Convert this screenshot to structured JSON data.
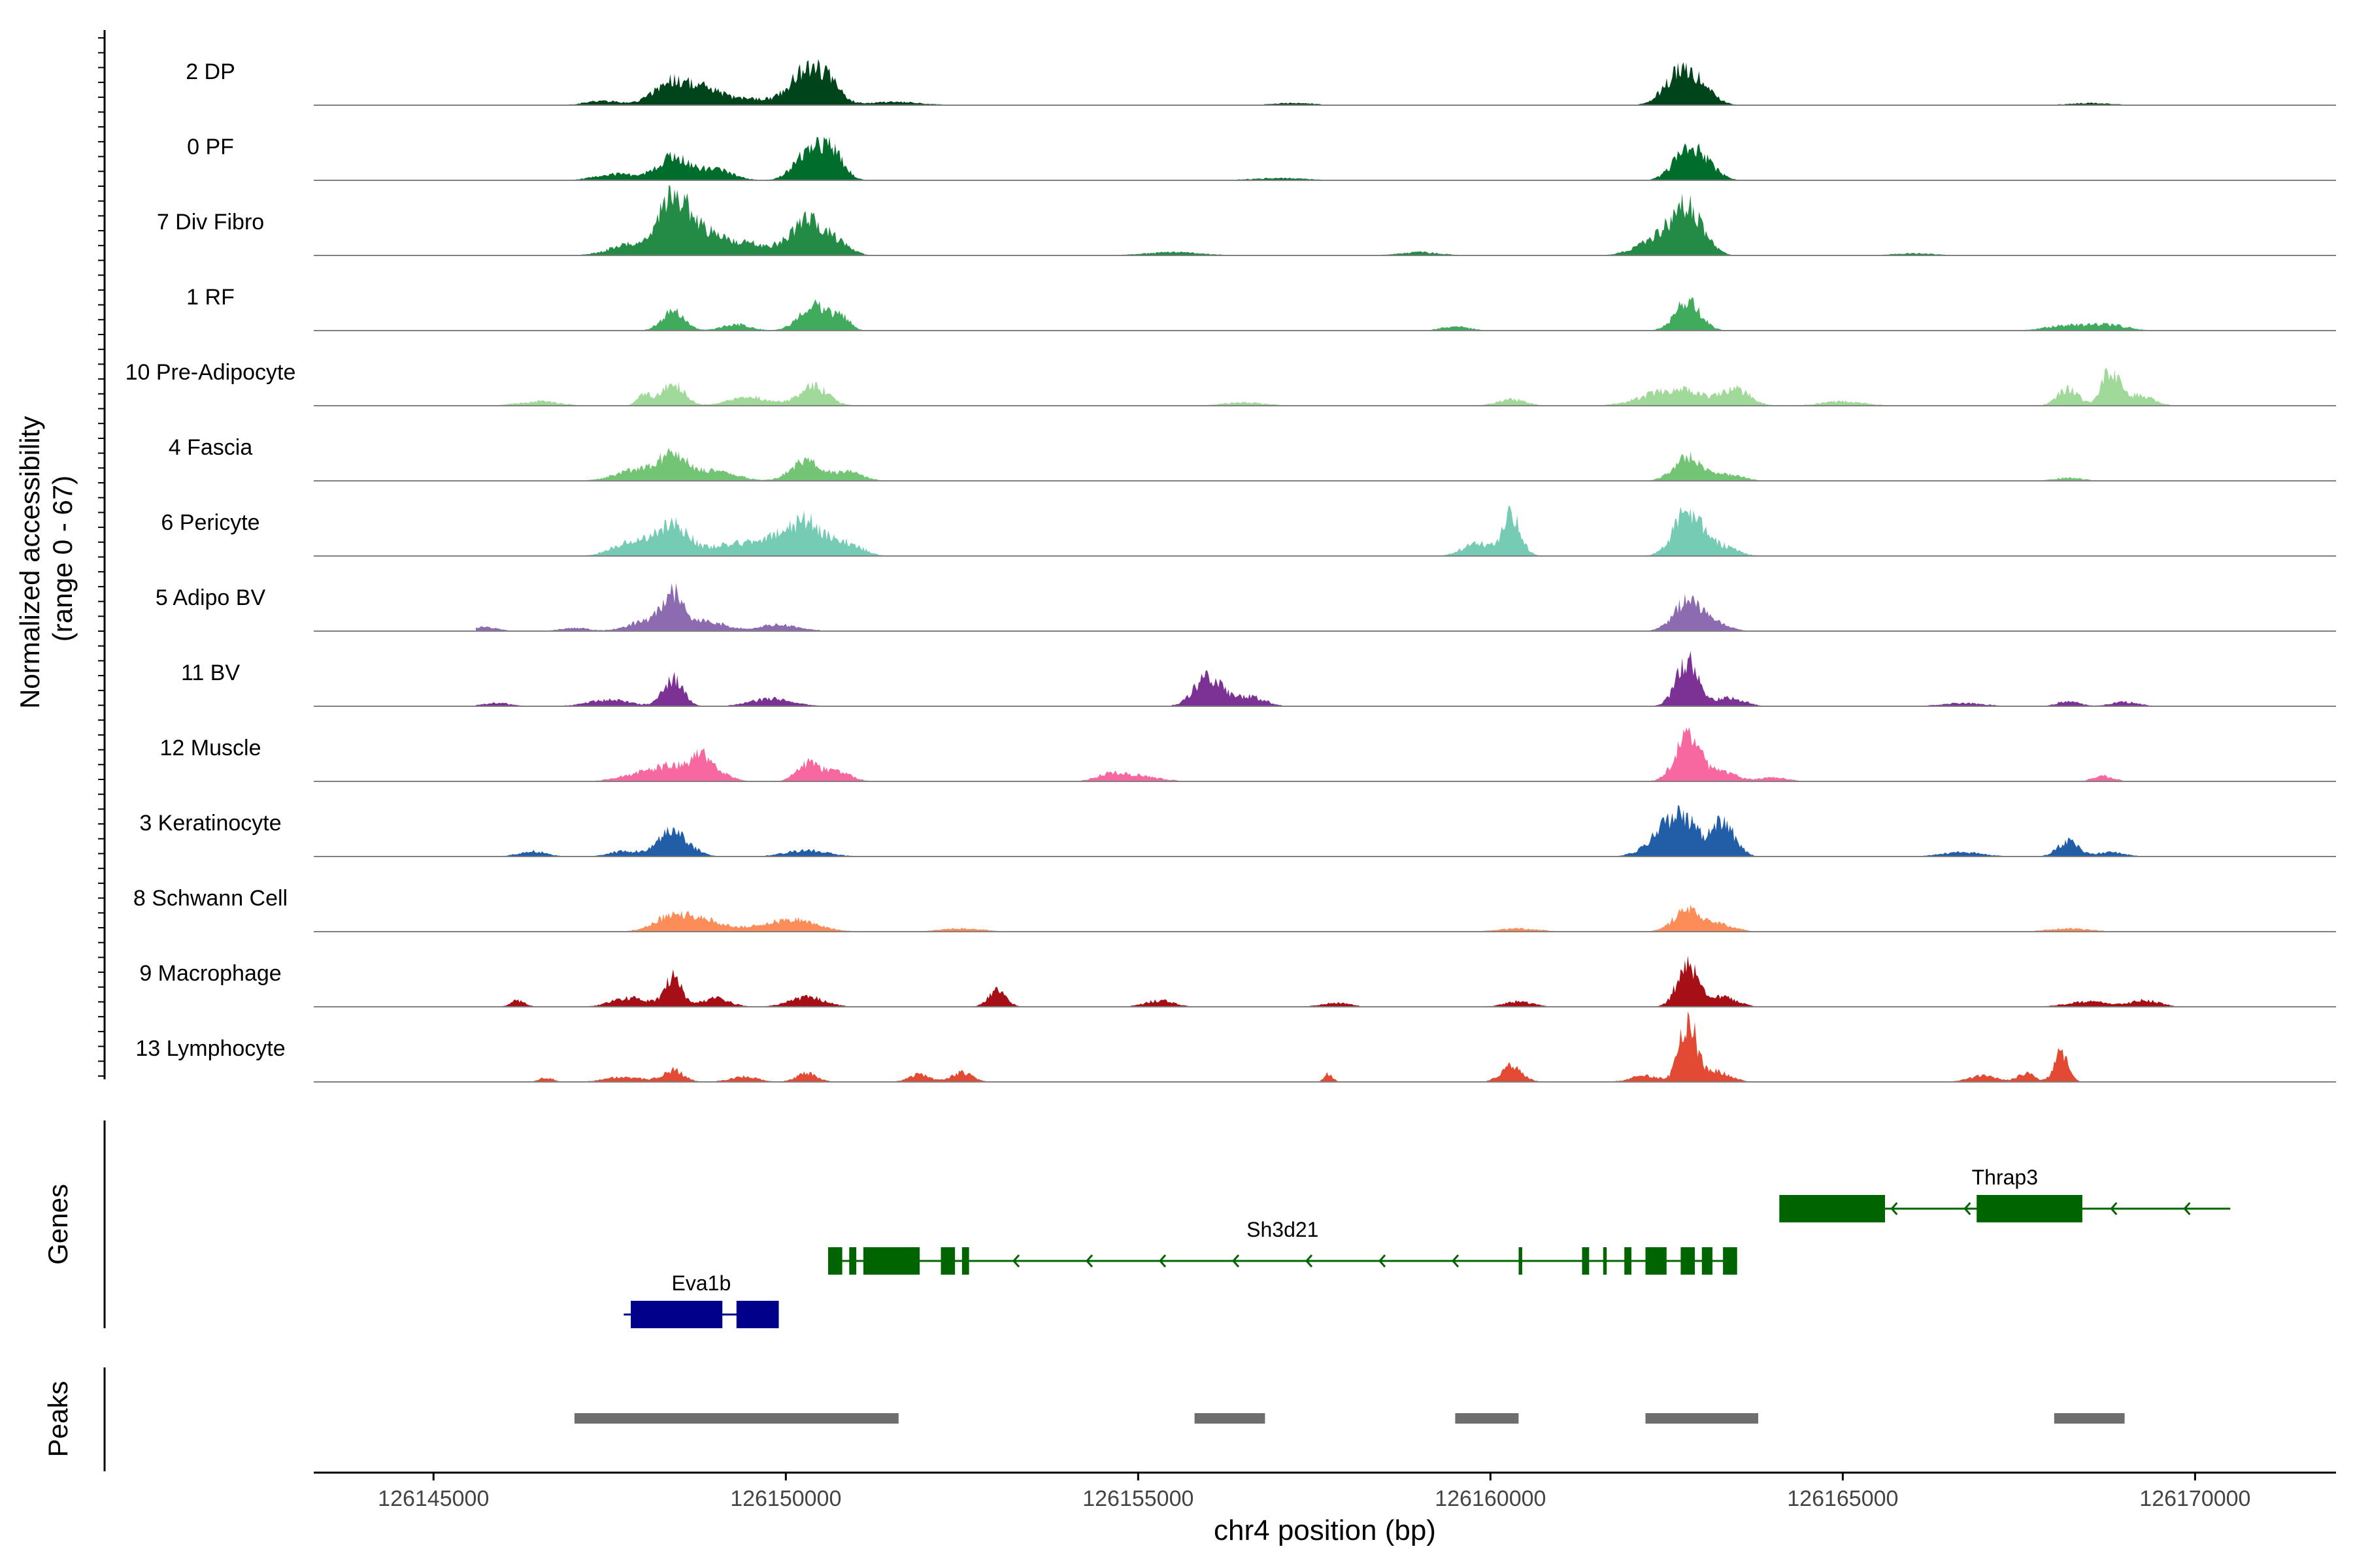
{
  "chart_data": {
    "type": "area",
    "title": "",
    "ylabel": "Normalized accessibility\n(range 0 - 67)",
    "ylabel_line1": "Normalized accessibility",
    "ylabel_line2": "(range 0 - 67)",
    "ylim": [
      0,
      67
    ],
    "xlabel": "chr4 position (bp)",
    "xlim": [
      126143300,
      126172000
    ],
    "xticks": [
      126145000,
      126150000,
      126155000,
      126160000,
      126165000,
      126170000
    ],
    "xtick_labels": [
      "126145000",
      "126150000",
      "126155000",
      "126160000",
      "126165000",
      "126170000"
    ],
    "track_range": [
      126145600,
      126170500
    ],
    "genes_label": "Genes",
    "peaks_label": "Peaks",
    "series": [
      {
        "name": "2 DP",
        "color": "#00441b",
        "peaks": [
          [
            126148400,
            23,
            260
          ],
          [
            126148900,
            12,
            220
          ],
          [
            126150300,
            32,
            240
          ],
          [
            126150600,
            14,
            180
          ],
          [
            126149500,
            6,
            300
          ],
          [
            126162700,
            31,
            220
          ],
          [
            126163000,
            10,
            200
          ],
          [
            126147400,
            4,
            250
          ],
          [
            126151500,
            3,
            400
          ],
          [
            126157200,
            2,
            300
          ],
          [
            126168500,
            2,
            300
          ]
        ]
      },
      {
        "name": "0 PF",
        "color": "#006d2c",
        "peaks": [
          [
            126148400,
            22,
            220
          ],
          [
            126149000,
            10,
            250
          ],
          [
            126150400,
            33,
            230
          ],
          [
            126150700,
            14,
            150
          ],
          [
            126147600,
            6,
            300
          ],
          [
            126162800,
            30,
            200
          ],
          [
            126163100,
            8,
            180
          ],
          [
            126157000,
            2,
            400
          ]
        ]
      },
      {
        "name": "7 Div Fibro",
        "color": "#238b45",
        "peaks": [
          [
            126148400,
            45,
            200
          ],
          [
            126148800,
            22,
            350
          ],
          [
            126147800,
            10,
            300
          ],
          [
            126149600,
            9,
            300
          ],
          [
            126150300,
            32,
            220
          ],
          [
            126150700,
            12,
            200
          ],
          [
            126162800,
            40,
            220
          ],
          [
            126162400,
            15,
            300
          ],
          [
            126155500,
            3,
            400
          ],
          [
            126159000,
            3,
            300
          ],
          [
            126166000,
            2,
            300
          ]
        ]
      },
      {
        "name": "1 RF",
        "color": "#41ab5d",
        "peaks": [
          [
            126148400,
            19,
            160
          ],
          [
            126150400,
            26,
            200
          ],
          [
            126150800,
            11,
            120
          ],
          [
            126149300,
            6,
            200
          ],
          [
            126162800,
            27,
            180
          ],
          [
            126159500,
            4,
            200
          ],
          [
            126168200,
            5,
            300
          ],
          [
            126168800,
            5,
            250
          ]
        ]
      },
      {
        "name": "10 Pre-Adipocyte",
        "color": "#a1d99b",
        "peaks": [
          [
            126148400,
            20,
            160
          ],
          [
            126148000,
            10,
            100
          ],
          [
            126150400,
            18,
            200
          ],
          [
            126149500,
            8,
            300
          ],
          [
            126162600,
            16,
            400
          ],
          [
            126163500,
            14,
            200
          ],
          [
            126160300,
            6,
            200
          ],
          [
            126168200,
            16,
            150
          ],
          [
            126168800,
            33,
            120
          ],
          [
            126169200,
            10,
            200
          ],
          [
            126146500,
            4,
            300
          ],
          [
            126156500,
            3,
            300
          ],
          [
            126165000,
            4,
            300
          ]
        ]
      },
      {
        "name": "4 Fascia",
        "color": "#74c476",
        "peaks": [
          [
            126148400,
            22,
            200
          ],
          [
            126147900,
            11,
            300
          ],
          [
            126149000,
            9,
            300
          ],
          [
            126150300,
            19,
            220
          ],
          [
            126150900,
            8,
            200
          ],
          [
            126162800,
            22,
            200
          ],
          [
            126163400,
            6,
            200
          ],
          [
            126168200,
            3,
            200
          ]
        ]
      },
      {
        "name": "6 Pericyte",
        "color": "#76cbb4",
        "peaks": [
          [
            126148400,
            30,
            220
          ],
          [
            126147800,
            14,
            250
          ],
          [
            126149200,
            11,
            300
          ],
          [
            126150300,
            31,
            250
          ],
          [
            126149800,
            14,
            250
          ],
          [
            126150900,
            11,
            200
          ],
          [
            126159800,
            12,
            200
          ],
          [
            126160300,
            38,
            130
          ],
          [
            126162800,
            42,
            200
          ],
          [
            126163300,
            9,
            200
          ]
        ]
      },
      {
        "name": "5 Adipo BV",
        "color": "#8c6bb1",
        "peaks": [
          [
            126148400,
            33,
            160
          ],
          [
            126148000,
            9,
            250
          ],
          [
            126148900,
            9,
            250
          ],
          [
            126149900,
            6,
            300
          ],
          [
            126162800,
            28,
            200
          ],
          [
            126163200,
            6,
            200
          ],
          [
            126145700,
            4,
            200
          ],
          [
            126147000,
            3,
            200
          ]
        ]
      },
      {
        "name": "11 BV",
        "color": "#7b3294",
        "peaks": [
          [
            126148400,
            26,
            140
          ],
          [
            126147500,
            6,
            300
          ],
          [
            126149800,
            7,
            300
          ],
          [
            126156000,
            28,
            200
          ],
          [
            126156600,
            9,
            200
          ],
          [
            126162800,
            42,
            160
          ],
          [
            126163400,
            8,
            200
          ],
          [
            126145900,
            3,
            200
          ],
          [
            126166700,
            3,
            300
          ],
          [
            126168200,
            5,
            150
          ],
          [
            126169000,
            4,
            200
          ]
        ]
      },
      {
        "name": "12 Muscle",
        "color": "#f768a1",
        "peaks": [
          [
            126148400,
            15,
            300
          ],
          [
            126148800,
            17,
            120
          ],
          [
            126149000,
            8,
            200
          ],
          [
            126150300,
            16,
            150
          ],
          [
            126150700,
            10,
            200
          ],
          [
            126162800,
            42,
            180
          ],
          [
            126163300,
            8,
            200
          ],
          [
            126147800,
            5,
            250
          ],
          [
            126155000,
            5,
            300
          ],
          [
            126154600,
            6,
            200
          ],
          [
            126164000,
            4,
            200
          ],
          [
            126168700,
            5,
            150
          ]
        ]
      },
      {
        "name": "3 Keratinocyte",
        "color": "#225ea8",
        "peaks": [
          [
            126148400,
            24,
            220
          ],
          [
            126147700,
            5,
            200
          ],
          [
            126146400,
            5,
            200
          ],
          [
            126150300,
            6,
            300
          ],
          [
            126162700,
            36,
            220
          ],
          [
            126163300,
            31,
            170
          ],
          [
            126162400,
            12,
            250
          ],
          [
            126166700,
            4,
            300
          ],
          [
            126168200,
            14,
            150
          ],
          [
            126168800,
            4,
            200
          ]
        ]
      },
      {
        "name": "8 Schwann Cell",
        "color": "#fc8d59",
        "peaks": [
          [
            126148400,
            15,
            260
          ],
          [
            126148900,
            9,
            250
          ],
          [
            126150200,
            10,
            300
          ],
          [
            126149700,
            5,
            300
          ],
          [
            126162800,
            20,
            200
          ],
          [
            126163300,
            6,
            200
          ],
          [
            126152500,
            3,
            300
          ],
          [
            126160400,
            3,
            300
          ],
          [
            126168200,
            3,
            300
          ]
        ]
      },
      {
        "name": "9 Macrophage",
        "color": "#a50f15",
        "peaks": [
          [
            126148400,
            28,
            120
          ],
          [
            126147800,
            9,
            250
          ],
          [
            126149000,
            8,
            200
          ],
          [
            126150300,
            9,
            250
          ],
          [
            126153000,
            17,
            120
          ],
          [
            126155300,
            6,
            200
          ],
          [
            126160400,
            5,
            200
          ],
          [
            126162800,
            39,
            150
          ],
          [
            126163300,
            9,
            200
          ],
          [
            126146200,
            6,
            100
          ],
          [
            126168500,
            5,
            300
          ],
          [
            126169300,
            6,
            200
          ],
          [
            126157800,
            4,
            200
          ]
        ]
      },
      {
        "name": "13 Lymphocyte",
        "color": "#e34a33",
        "peaks": [
          [
            126148400,
            11,
            150
          ],
          [
            126147700,
            5,
            250
          ],
          [
            126149400,
            5,
            200
          ],
          [
            126150300,
            8,
            150
          ],
          [
            126151900,
            7,
            150
          ],
          [
            126152500,
            9,
            150
          ],
          [
            126157700,
            8,
            60
          ],
          [
            126160300,
            15,
            150
          ],
          [
            126162800,
            58,
            120
          ],
          [
            126163200,
            10,
            200
          ],
          [
            126162200,
            6,
            200
          ],
          [
            126167000,
            6,
            200
          ],
          [
            126167600,
            8,
            120
          ],
          [
            126168100,
            27,
            100
          ],
          [
            126146600,
            4,
            100
          ]
        ]
      }
    ],
    "genes": [
      {
        "name": "Eva1b",
        "color": "#00008b",
        "start": 126147700,
        "end": 126149900,
        "row": 2,
        "strand": "-",
        "exons": [
          [
            126147800,
            126149100
          ],
          [
            126149300,
            126149900
          ]
        ]
      },
      {
        "name": "Sh3d21",
        "color": "#006400",
        "start": 126150600,
        "end": 126163500,
        "row": 1,
        "strand": "-",
        "exons": [
          [
            126150600,
            126150800
          ],
          [
            126150900,
            126151000
          ],
          [
            126151100,
            126151900
          ],
          [
            126152200,
            126152400
          ],
          [
            126152500,
            126152600
          ],
          [
            126160400,
            126160450
          ],
          [
            126161300,
            126161400
          ],
          [
            126161600,
            126161650
          ],
          [
            126161900,
            126162000
          ],
          [
            126162200,
            126162500
          ],
          [
            126162700,
            126162900
          ],
          [
            126163000,
            126163150
          ],
          [
            126163300,
            126163500
          ]
        ]
      },
      {
        "name": "Thrap3",
        "color": "#006400",
        "start": 126164100,
        "end": 126170500,
        "row": 0,
        "strand": "-",
        "exons": [
          [
            126164100,
            126165600
          ],
          [
            126166900,
            126168400
          ]
        ]
      }
    ],
    "peak_regions": [
      [
        126147000,
        126151600
      ],
      [
        126155800,
        126156800
      ],
      [
        126159500,
        126160400
      ],
      [
        126162200,
        126163800
      ],
      [
        126168000,
        126169000
      ]
    ]
  },
  "colors": {
    "axis": "#000000",
    "baseline": "#7f7f7f",
    "peak_bar": "#6e6e6e",
    "text": "#000000"
  }
}
